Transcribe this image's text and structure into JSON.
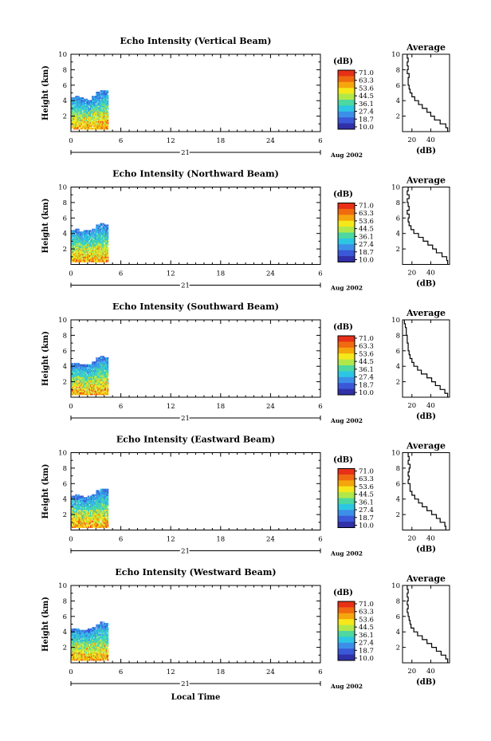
{
  "figure": {
    "xlabel": "Local Time",
    "date_label": "Aug 2002",
    "day_label": "21",
    "ylabel": "Height (km)",
    "average_title": "Average",
    "average_xlabel": "(dB)",
    "colorbar_unit": "(dB)",
    "colorbar_ticks": [
      "71.0",
      "63.3",
      "53.6",
      "44.5",
      "36.1",
      "27.4",
      "18.7",
      "10.0"
    ],
    "colorbar_colors": [
      "#e83018",
      "#f06a10",
      "#f5a60c",
      "#f5e81a",
      "#b0e84a",
      "#4cd8a0",
      "#2cc6e4",
      "#3c8fe8",
      "#3a58d8",
      "#3030a8"
    ]
  },
  "chart_data": [
    {
      "type": "heatmap",
      "title": "Echo Intensity (Vertical Beam)",
      "x_ticks": [
        "0",
        "6",
        "12",
        "18",
        "24",
        "6"
      ],
      "xlim": [
        0,
        30
      ],
      "y_ticks": [
        "2",
        "4",
        "6",
        "8",
        "10"
      ],
      "ylim": [
        0,
        10
      ],
      "data_x_range": [
        0,
        4.5
      ],
      "data_top_km": [
        4.4,
        4.5,
        4.3,
        4.2,
        4.0,
        4.6,
        5.0,
        5.3,
        5.2
      ],
      "avg_x_ticks": [
        "20",
        "40"
      ],
      "avg_xlim": [
        10,
        60
      ],
      "avg_profile": [
        [
          58,
          0.5
        ],
        [
          56,
          1.0
        ],
        [
          50,
          1.5
        ],
        [
          44,
          2.0
        ],
        [
          40,
          2.5
        ],
        [
          36,
          3.0
        ],
        [
          31,
          3.5
        ],
        [
          27,
          4.0
        ],
        [
          23,
          4.5
        ],
        [
          20,
          5.0
        ],
        [
          18,
          5.5
        ],
        [
          17,
          6.0
        ],
        [
          16,
          6.5
        ],
        [
          16,
          7.0
        ],
        [
          17,
          7.5
        ],
        [
          15,
          8.0
        ],
        [
          16,
          8.5
        ],
        [
          15,
          9.0
        ],
        [
          16,
          9.5
        ],
        [
          15,
          10.0
        ]
      ]
    },
    {
      "type": "heatmap",
      "title": "Echo Intensity (Northward Beam)",
      "x_ticks": [
        "0",
        "6",
        "12",
        "18",
        "24",
        "6"
      ],
      "xlim": [
        0,
        30
      ],
      "y_ticks": [
        "2",
        "4",
        "6",
        "8",
        "10"
      ],
      "ylim": [
        0,
        10
      ],
      "data_x_range": [
        0,
        4.5
      ],
      "data_top_km": [
        4.4,
        4.5,
        4.2,
        4.3,
        4.4,
        4.6,
        5.0,
        5.2,
        5.1
      ],
      "avg_x_ticks": [
        "20",
        "40"
      ],
      "avg_xlim": [
        10,
        60
      ],
      "avg_profile": [
        [
          58,
          0.5
        ],
        [
          57,
          1.0
        ],
        [
          52,
          1.5
        ],
        [
          46,
          2.0
        ],
        [
          42,
          2.5
        ],
        [
          37,
          3.0
        ],
        [
          32,
          3.5
        ],
        [
          27,
          4.0
        ],
        [
          22,
          4.5
        ],
        [
          19,
          5.0
        ],
        [
          17,
          5.5
        ],
        [
          16,
          6.0
        ],
        [
          17,
          6.5
        ],
        [
          15,
          7.0
        ],
        [
          17,
          7.5
        ],
        [
          16,
          8.0
        ],
        [
          15,
          8.5
        ],
        [
          17,
          9.0
        ],
        [
          15,
          9.5
        ],
        [
          16,
          10.0
        ]
      ]
    },
    {
      "type": "heatmap",
      "title": "Echo Intensity (Southward Beam)",
      "x_ticks": [
        "0",
        "6",
        "12",
        "18",
        "24",
        "6"
      ],
      "xlim": [
        0,
        30
      ],
      "y_ticks": [
        "2",
        "4",
        "6",
        "8",
        "10"
      ],
      "ylim": [
        0,
        10
      ],
      "data_x_range": [
        0,
        4.5
      ],
      "data_top_km": [
        4.3,
        4.4,
        4.2,
        4.1,
        4.2,
        4.5,
        5.0,
        5.3,
        5.1
      ],
      "avg_x_ticks": [
        "20",
        "40"
      ],
      "avg_xlim": [
        10,
        60
      ],
      "avg_profile": [
        [
          58,
          0.5
        ],
        [
          55,
          1.0
        ],
        [
          50,
          1.5
        ],
        [
          45,
          2.0
        ],
        [
          41,
          2.5
        ],
        [
          36,
          3.0
        ],
        [
          30,
          3.5
        ],
        [
          26,
          4.0
        ],
        [
          22,
          4.5
        ],
        [
          20,
          5.0
        ],
        [
          18,
          5.5
        ],
        [
          17,
          6.0
        ],
        [
          16,
          6.5
        ],
        [
          16,
          7.0
        ],
        [
          15,
          7.5
        ],
        [
          15,
          8.0
        ],
        [
          14,
          8.5
        ],
        [
          14,
          9.0
        ],
        [
          13,
          9.5
        ],
        [
          12,
          10.0
        ]
      ]
    },
    {
      "type": "heatmap",
      "title": "Echo Intensity (Eastward Beam)",
      "x_ticks": [
        "0",
        "6",
        "12",
        "18",
        "24",
        "6"
      ],
      "xlim": [
        0,
        30
      ],
      "y_ticks": [
        "2",
        "4",
        "6",
        "8",
        "10"
      ],
      "ylim": [
        0,
        10
      ],
      "data_x_range": [
        0,
        4.5
      ],
      "data_top_km": [
        4.4,
        4.5,
        4.3,
        4.2,
        4.4,
        4.6,
        5.0,
        5.3,
        5.2
      ],
      "avg_x_ticks": [
        "20",
        "40"
      ],
      "avg_xlim": [
        10,
        60
      ],
      "avg_profile": [
        [
          56,
          0.5
        ],
        [
          55,
          1.0
        ],
        [
          50,
          1.5
        ],
        [
          46,
          2.0
        ],
        [
          41,
          2.5
        ],
        [
          36,
          3.0
        ],
        [
          31,
          3.5
        ],
        [
          27,
          4.0
        ],
        [
          23,
          4.5
        ],
        [
          20,
          5.0
        ],
        [
          18,
          5.5
        ],
        [
          18,
          6.0
        ],
        [
          16,
          6.5
        ],
        [
          17,
          7.0
        ],
        [
          16,
          7.5
        ],
        [
          17,
          8.0
        ],
        [
          18,
          8.5
        ],
        [
          16,
          9.0
        ],
        [
          17,
          9.5
        ],
        [
          16,
          10.0
        ]
      ]
    },
    {
      "type": "heatmap",
      "title": "Echo Intensity (Westward Beam)",
      "x_ticks": [
        "0",
        "6",
        "12",
        "18",
        "24",
        "6"
      ],
      "xlim": [
        0,
        30
      ],
      "y_ticks": [
        "2",
        "4",
        "6",
        "8",
        "10"
      ],
      "ylim": [
        0,
        10
      ],
      "data_x_range": [
        0,
        4.5
      ],
      "data_top_km": [
        4.3,
        4.4,
        4.2,
        4.1,
        4.3,
        4.6,
        4.9,
        5.2,
        5.0
      ],
      "avg_x_ticks": [
        "20",
        "40"
      ],
      "avg_xlim": [
        10,
        60
      ],
      "avg_profile": [
        [
          58,
          0.5
        ],
        [
          56,
          1.0
        ],
        [
          51,
          1.5
        ],
        [
          46,
          2.0
        ],
        [
          41,
          2.5
        ],
        [
          36,
          3.0
        ],
        [
          31,
          3.5
        ],
        [
          26,
          4.0
        ],
        [
          22,
          4.5
        ],
        [
          19,
          5.0
        ],
        [
          18,
          5.5
        ],
        [
          17,
          6.0
        ],
        [
          16,
          6.5
        ],
        [
          15,
          7.0
        ],
        [
          16,
          7.5
        ],
        [
          15,
          8.0
        ],
        [
          16,
          8.5
        ],
        [
          15,
          9.0
        ],
        [
          16,
          9.5
        ],
        [
          15,
          10.0
        ]
      ]
    }
  ]
}
